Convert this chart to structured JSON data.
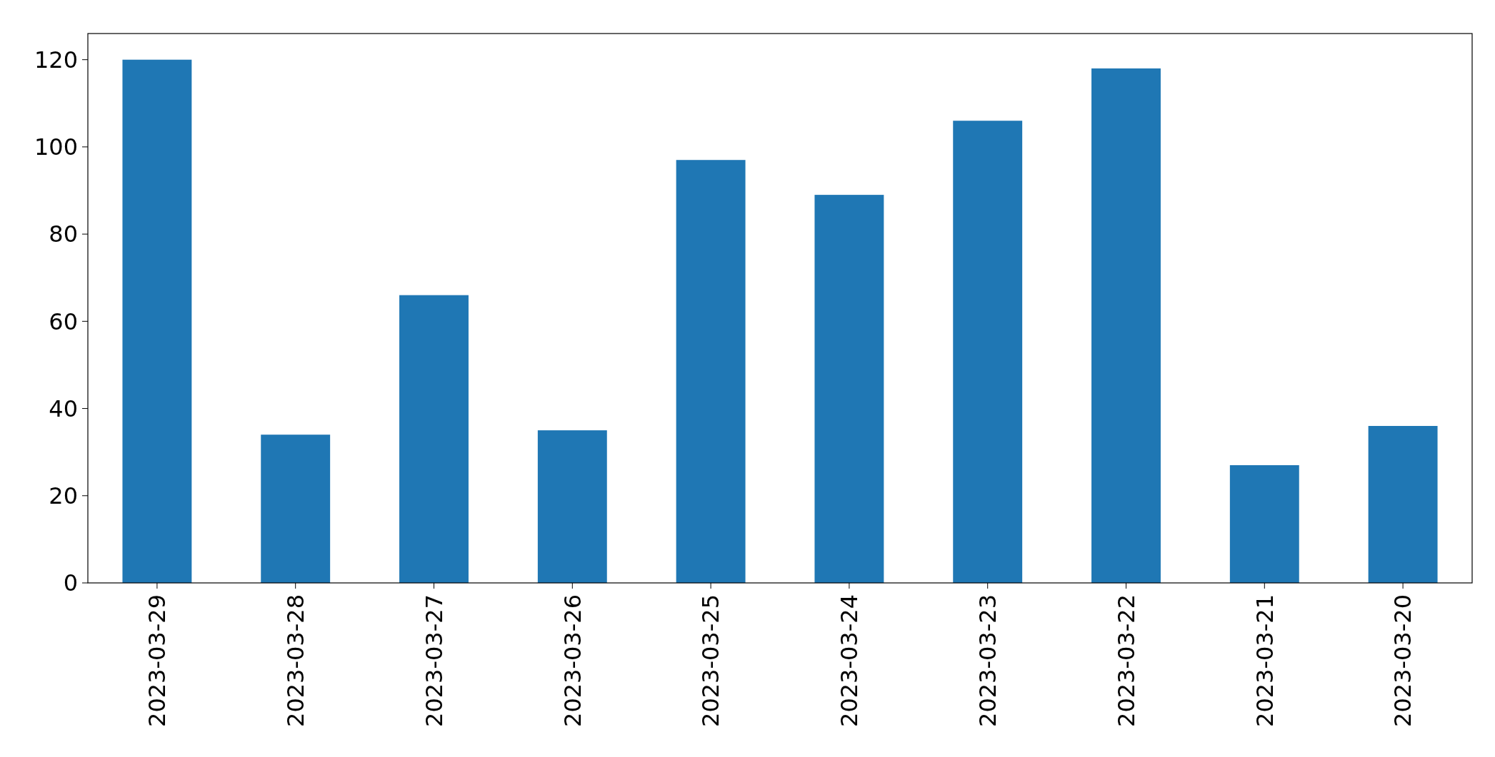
{
  "chart_data": {
    "type": "bar",
    "categories": [
      "2023-03-29",
      "2023-03-28",
      "2023-03-27",
      "2023-03-26",
      "2023-03-25",
      "2023-03-24",
      "2023-03-23",
      "2023-03-22",
      "2023-03-21",
      "2023-03-20"
    ],
    "values": [
      120,
      34,
      66,
      35,
      97,
      89,
      106,
      118,
      27,
      36
    ],
    "color": "#1f77b4",
    "ylim": [
      0,
      126
    ],
    "yticks": [
      0,
      20,
      40,
      60,
      80,
      100,
      120
    ],
    "grid": false
  }
}
